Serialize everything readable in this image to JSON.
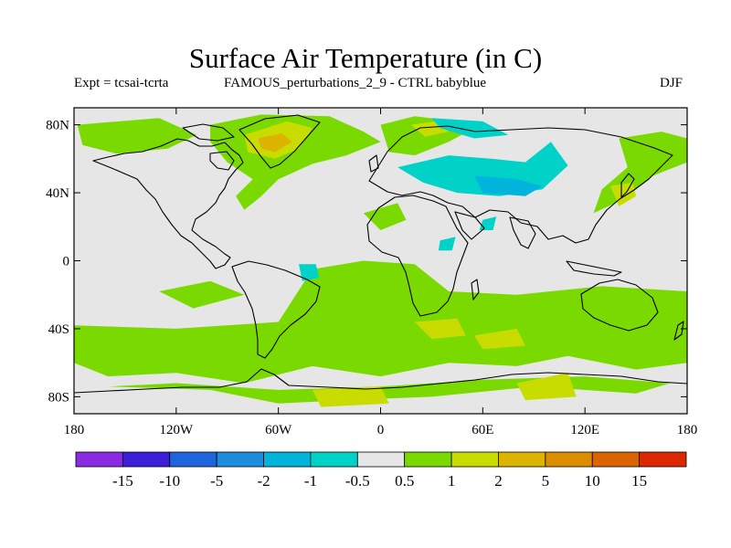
{
  "title": "Surface Air Temperature (in C)",
  "subtitle_left": "Expt = tcsai-tcrta",
  "subtitle_center": "FAMOUS_perturbations_2_9 - CTRL babyblue",
  "subtitle_right": "DJF",
  "map": {
    "projection": "equirectangular",
    "lon_range": [
      -180,
      180
    ],
    "lat_range": [
      -90,
      90
    ],
    "background_color": "#e6e6e6",
    "lat_ticks": [
      {
        "lat": 80,
        "label": "80N"
      },
      {
        "lat": 40,
        "label": "40N"
      },
      {
        "lat": 0,
        "label": "0"
      },
      {
        "lat": -40,
        "label": "40S"
      },
      {
        "lat": -80,
        "label": "80S"
      }
    ],
    "lon_ticks": [
      {
        "lon": -180,
        "label": "180"
      },
      {
        "lon": -120,
        "label": "120W"
      },
      {
        "lon": -60,
        "label": "60W"
      },
      {
        "lon": 0,
        "label": "0"
      },
      {
        "lon": 60,
        "label": "60E"
      },
      {
        "lon": 120,
        "label": "120E"
      },
      {
        "lon": 180,
        "label": "180"
      }
    ]
  },
  "colorbar": {
    "colors": [
      "#8a2be2",
      "#3c1fd8",
      "#1e64dc",
      "#1e8cdc",
      "#00b4dc",
      "#00d2c8",
      "#e6e6e6",
      "#7ada00",
      "#c8dc00",
      "#dcb400",
      "#dc8c00",
      "#dc6400",
      "#dc2800"
    ],
    "labels": [
      "-15",
      "-10",
      "-5",
      "-2",
      "-1",
      "-0.5",
      "0.5",
      "1",
      "2",
      "5",
      "10",
      "15"
    ]
  },
  "anomaly_regions": [
    {
      "level": "1",
      "color": "#7ada00",
      "name": "north-atlantic-greenland",
      "points": [
        [
          -100,
          80
        ],
        [
          -70,
          86
        ],
        [
          -30,
          85
        ],
        [
          -10,
          76
        ],
        [
          0,
          70
        ],
        [
          -20,
          62
        ],
        [
          -40,
          57
        ],
        [
          -60,
          48
        ],
        [
          -70,
          38
        ],
        [
          -80,
          30
        ],
        [
          -85,
          38
        ],
        [
          -75,
          48
        ],
        [
          -90,
          58
        ],
        [
          -100,
          70
        ]
      ]
    },
    {
      "level": "2",
      "color": "#c8dc00",
      "name": "greenland-warm",
      "points": [
        [
          -80,
          74
        ],
        [
          -55,
          82
        ],
        [
          -40,
          78
        ],
        [
          -48,
          66
        ],
        [
          -62,
          60
        ],
        [
          -78,
          64
        ]
      ]
    },
    {
      "level": "5",
      "color": "#dcb400",
      "name": "labrador-warm",
      "points": [
        [
          -72,
          72
        ],
        [
          -58,
          75
        ],
        [
          -52,
          70
        ],
        [
          -62,
          64
        ],
        [
          -70,
          66
        ]
      ]
    },
    {
      "level": "1",
      "color": "#7ada00",
      "name": "alaska-arctic",
      "points": [
        [
          -178,
          80
        ],
        [
          -130,
          84
        ],
        [
          -108,
          74
        ],
        [
          -125,
          66
        ],
        [
          -155,
          63
        ],
        [
          -175,
          68
        ]
      ]
    },
    {
      "level": "1",
      "color": "#7ada00",
      "name": "scandinavia",
      "points": [
        [
          0,
          80
        ],
        [
          20,
          85
        ],
        [
          45,
          82
        ],
        [
          55,
          78
        ],
        [
          40,
          70
        ],
        [
          20,
          62
        ],
        [
          5,
          64
        ]
      ]
    },
    {
      "level": "2",
      "color": "#c8dc00",
      "name": "barents-warm",
      "points": [
        [
          18,
          80
        ],
        [
          32,
          82
        ],
        [
          40,
          76
        ],
        [
          26,
          73
        ]
      ]
    },
    {
      "level": "1",
      "color": "#7ada00",
      "name": "east-siberia",
      "points": [
        [
          140,
          72
        ],
        [
          165,
          76
        ],
        [
          180,
          72
        ],
        [
          180,
          58
        ],
        [
          160,
          50
        ],
        [
          140,
          35
        ],
        [
          125,
          28
        ],
        [
          130,
          42
        ],
        [
          145,
          55
        ]
      ]
    },
    {
      "level": "2",
      "color": "#c8dc00",
      "name": "japan-warm",
      "points": [
        [
          135,
          44
        ],
        [
          148,
          46
        ],
        [
          150,
          38
        ],
        [
          140,
          32
        ]
      ]
    },
    {
      "level": "1",
      "color": "#7ada00",
      "name": "southern-ocean-band",
      "points": [
        [
          -180,
          -38
        ],
        [
          -120,
          -40
        ],
        [
          -60,
          -36
        ],
        [
          -40,
          -5
        ],
        [
          -10,
          0
        ],
        [
          20,
          -2
        ],
        [
          40,
          -18
        ],
        [
          80,
          -20
        ],
        [
          130,
          -15
        ],
        [
          180,
          -18
        ],
        [
          180,
          -60
        ],
        [
          150,
          -64
        ],
        [
          110,
          -56
        ],
        [
          80,
          -62
        ],
        [
          40,
          -60
        ],
        [
          0,
          -68
        ],
        [
          -40,
          -62
        ],
        [
          -80,
          -72
        ],
        [
          -120,
          -66
        ],
        [
          -160,
          -68
        ],
        [
          -180,
          -60
        ]
      ]
    },
    {
      "level": "1",
      "color": "#7ada00",
      "name": "antarctic-coast",
      "points": [
        [
          -160,
          -74
        ],
        [
          -100,
          -76
        ],
        [
          -60,
          -84
        ],
        [
          -20,
          -82
        ],
        [
          30,
          -80
        ],
        [
          90,
          -74
        ],
        [
          150,
          -78
        ],
        [
          170,
          -72
        ],
        [
          120,
          -68
        ],
        [
          60,
          -70
        ],
        [
          0,
          -74
        ],
        [
          -60,
          -76
        ],
        [
          -120,
          -72
        ]
      ]
    },
    {
      "level": "2",
      "color": "#c8dc00",
      "name": "south-atlantic-warm",
      "points": [
        [
          20,
          -36
        ],
        [
          45,
          -34
        ],
        [
          50,
          -44
        ],
        [
          30,
          -46
        ]
      ]
    },
    {
      "level": "2",
      "color": "#c8dc00",
      "name": "south-indian-warm",
      "points": [
        [
          55,
          -44
        ],
        [
          80,
          -40
        ],
        [
          85,
          -50
        ],
        [
          60,
          -52
        ]
      ]
    },
    {
      "level": "2",
      "color": "#c8dc00",
      "name": "ross-warm",
      "points": [
        [
          80,
          -72
        ],
        [
          110,
          -66
        ],
        [
          115,
          -80
        ],
        [
          85,
          -82
        ]
      ]
    },
    {
      "level": "2",
      "color": "#c8dc00",
      "name": "weddell-warm",
      "points": [
        [
          -40,
          -76
        ],
        [
          0,
          -74
        ],
        [
          5,
          -84
        ],
        [
          -35,
          -86
        ]
      ]
    },
    {
      "level": "-1",
      "color": "#00d2c8",
      "name": "siberia-cold",
      "points": [
        [
          10,
          55
        ],
        [
          40,
          62
        ],
        [
          65,
          60
        ],
        [
          85,
          58
        ],
        [
          100,
          70
        ],
        [
          110,
          56
        ],
        [
          95,
          42
        ],
        [
          70,
          38
        ],
        [
          45,
          40
        ],
        [
          25,
          46
        ]
      ]
    },
    {
      "level": "-2",
      "color": "#00b4dc",
      "name": "central-asia-cold",
      "points": [
        [
          55,
          50
        ],
        [
          80,
          48
        ],
        [
          95,
          44
        ],
        [
          85,
          38
        ],
        [
          60,
          40
        ]
      ]
    },
    {
      "level": "-1",
      "color": "#00d2c8",
      "name": "barents-cold",
      "points": [
        [
          30,
          84
        ],
        [
          60,
          82
        ],
        [
          75,
          74
        ],
        [
          55,
          72
        ],
        [
          35,
          78
        ]
      ]
    },
    {
      "level": "-1",
      "color": "#00d2c8",
      "name": "brazil-cold",
      "points": [
        [
          -48,
          -2
        ],
        [
          -38,
          -2
        ],
        [
          -36,
          -10
        ],
        [
          -46,
          -12
        ]
      ]
    },
    {
      "level": "-1",
      "color": "#00d2c8",
      "name": "arabia-cold",
      "points": [
        [
          35,
          12
        ],
        [
          44,
          14
        ],
        [
          42,
          6
        ],
        [
          34,
          6
        ]
      ]
    },
    {
      "level": "-1",
      "color": "#00d2c8",
      "name": "tibet-cold",
      "points": [
        [
          60,
          24
        ],
        [
          68,
          26
        ],
        [
          66,
          18
        ],
        [
          58,
          18
        ]
      ]
    },
    {
      "level": "1",
      "color": "#7ada00",
      "name": "mid-atlantic",
      "points": [
        [
          -10,
          28
        ],
        [
          10,
          34
        ],
        [
          15,
          24
        ],
        [
          0,
          18
        ]
      ]
    },
    {
      "level": "1",
      "color": "#7ada00",
      "name": "east-pacific",
      "points": [
        [
          -130,
          -18
        ],
        [
          -100,
          -12
        ],
        [
          -80,
          -20
        ],
        [
          -110,
          -28
        ]
      ]
    }
  ]
}
